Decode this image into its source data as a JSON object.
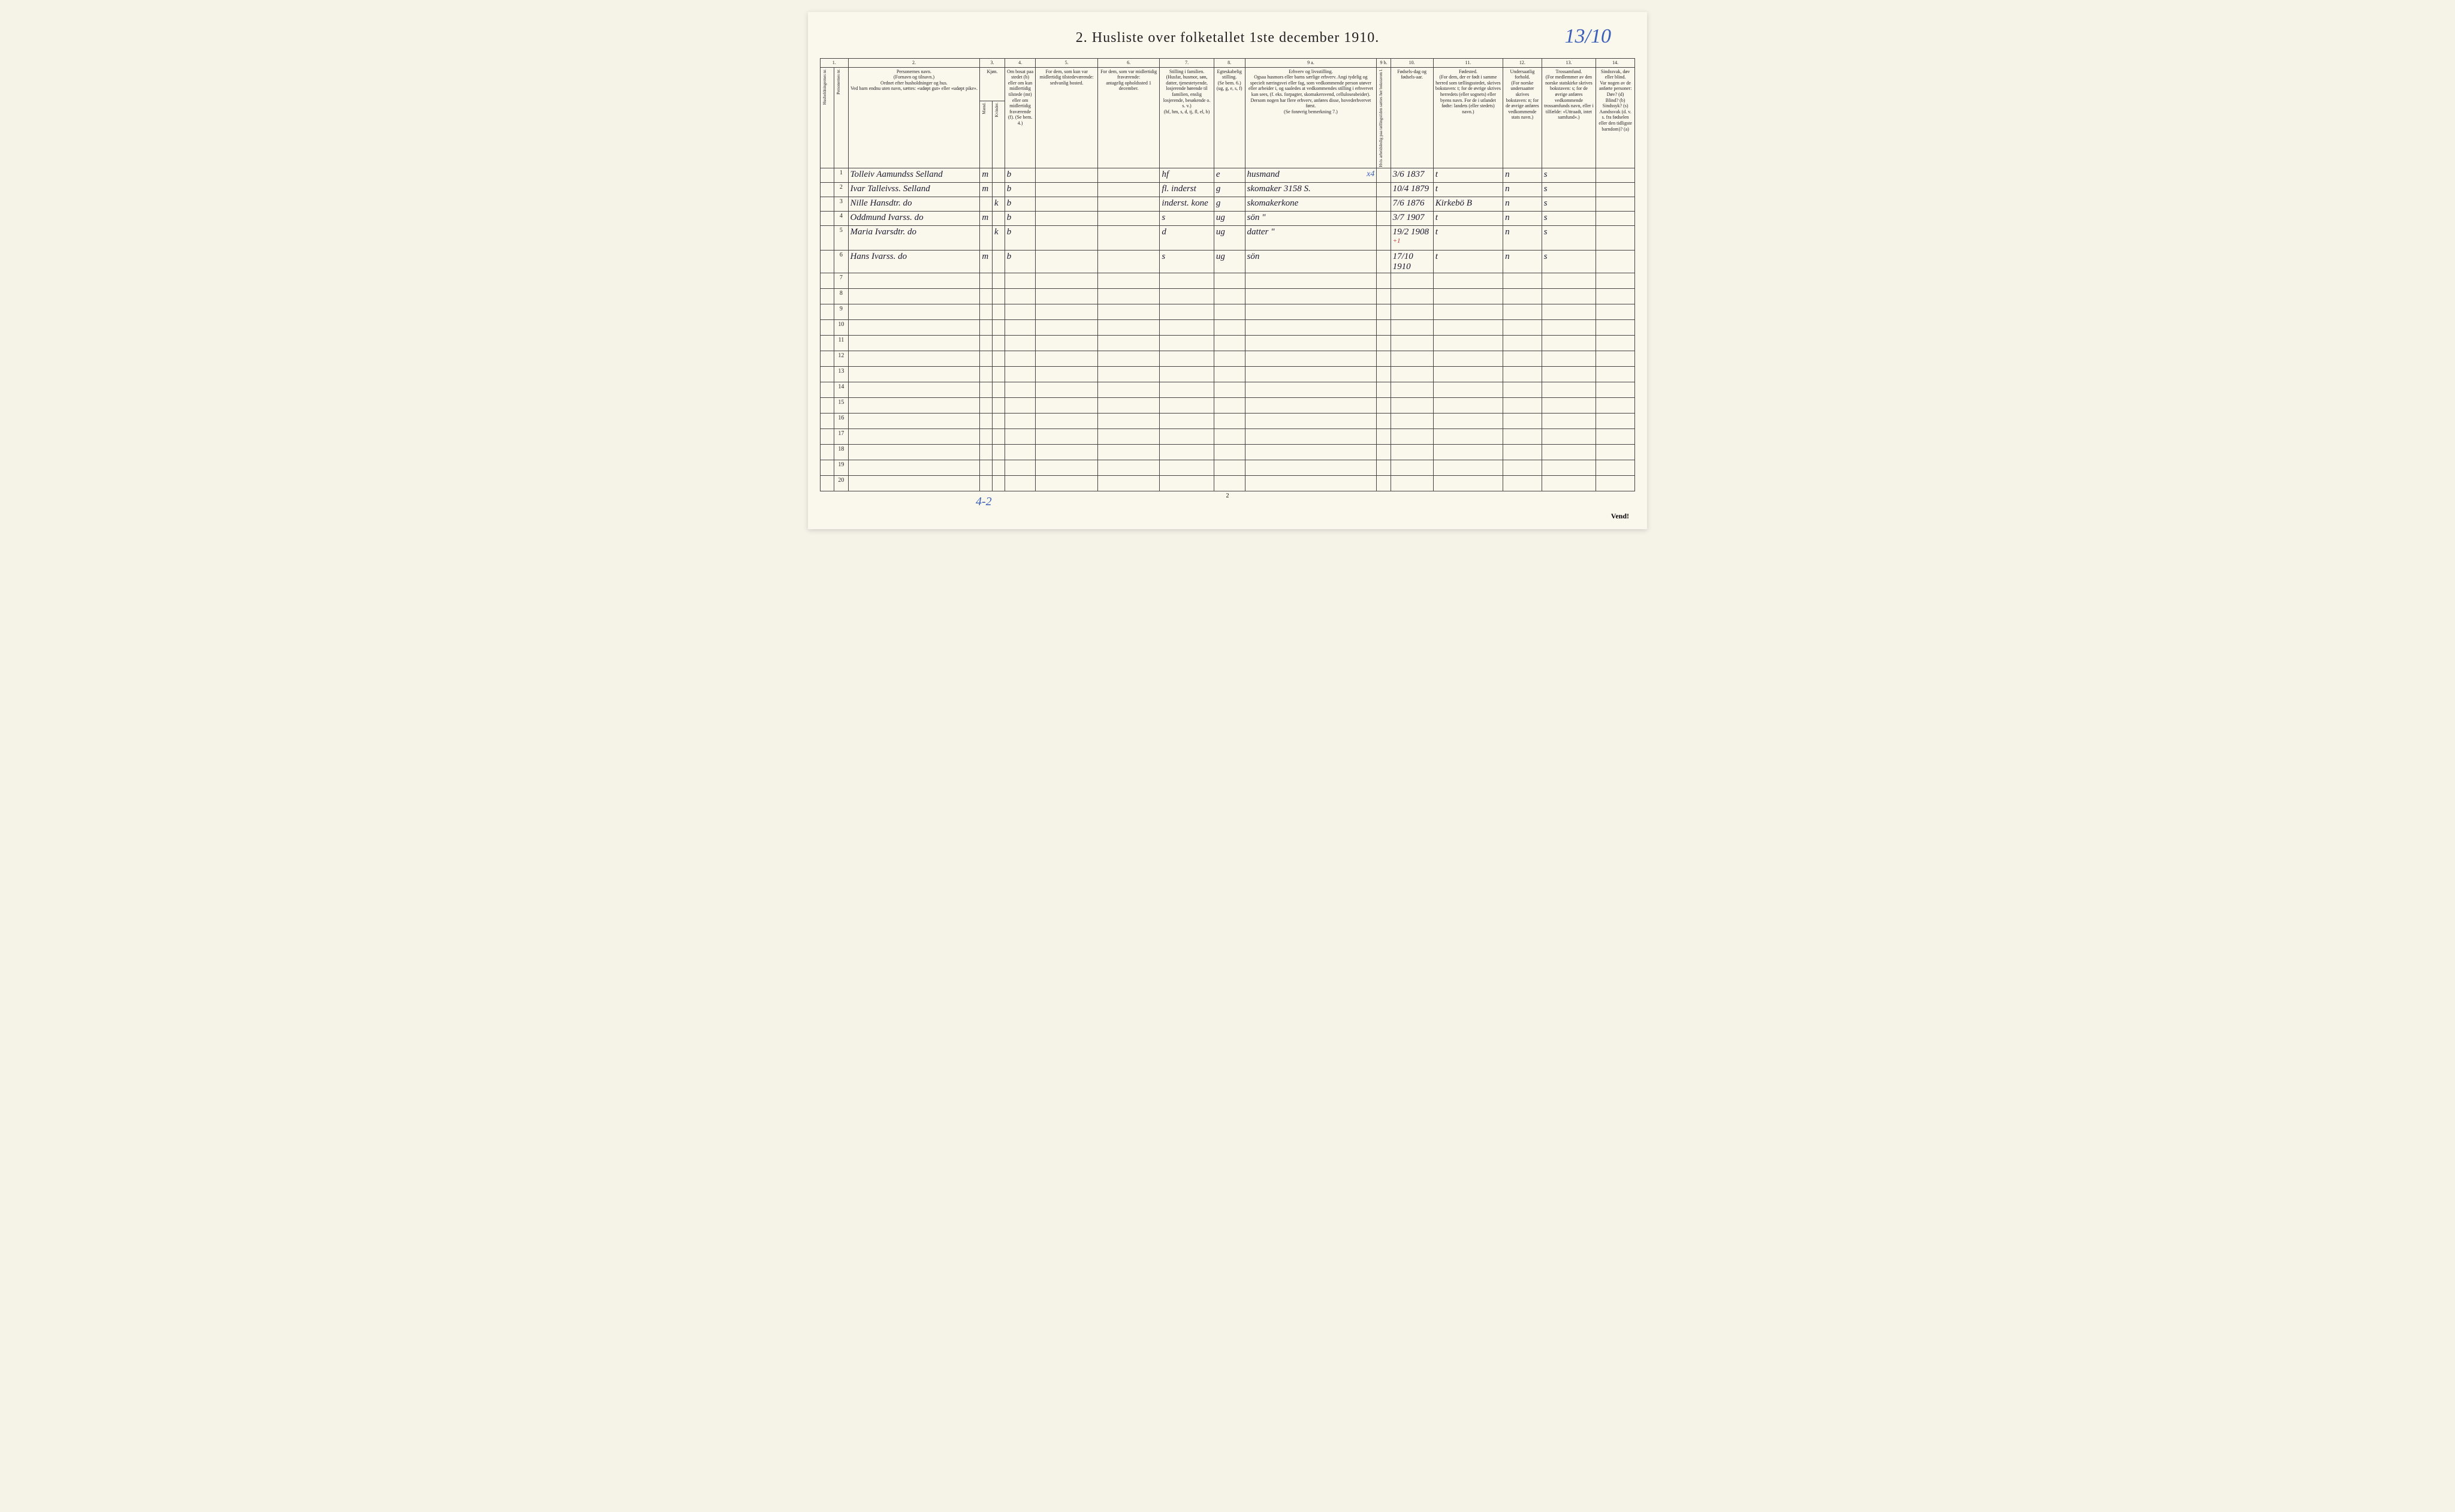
{
  "title": "2.  Husliste over folketallet 1ste december 1910.",
  "handwritten_top": "13/10",
  "columns": {
    "c1": "1.",
    "c1a": "Husholdningernes nr.",
    "c1b": "Personernes nr.",
    "c2": "2.",
    "c2_text": "Personernes navn.\n(Fornavn og tilnavn.)\nOrdnet efter husholdninger og hus.\nVed barn endnu uten navn, sættes: «udøpt gut» eller «udøpt pike».",
    "c3": "3.",
    "c3a": "Kjøn.",
    "c3b": "Mænd.",
    "c3c": "Kvinder.",
    "c4": "4.",
    "c4_text": "Om bosat paa stedet (b) eller om kun midlertidig tilstede (mt) eller om midlertidig fraværende (f). (Se bem. 4.)",
    "c5": "5.",
    "c5_text": "For dem, som kun var midlertidig tilstedeværende:\nsedvanlig bosted.",
    "c6": "6.",
    "c6_text": "For dem, som var midlertidig fraværende:\nantagelig opholdssted 1 december.",
    "c7": "7.",
    "c7_text": "Stilling i familien.\n(Husfar, husmor, søn, datter, tjenestetyende, losjerende hørende til familien, enslig losjerende, besøkende o. s. v.)\n(hf, hm, s, d, tj, fl, el, b)",
    "c8": "8.",
    "c8_text": "Egteskabelig stilling.\n(Se bem. 6.)\n(ug, g, e, s, f)",
    "c9a": "9 a.",
    "c9a_text": "Erhverv og livsstilling.\nOgsaa husmors eller barns særlige erhverv. Angi tydelig og specielt næringsvei eller fag, som vedkommende person utøver eller arbeider i, og saaledes at vedkommendes stilling i erhvervet kan sees, (f. eks. forpagter, skomakersvend, celluloseabeider). Dersom nogen har flere erhverv, anføres disse, hovederhvervet først.\n(Se forøvrig bemerkning 7.)",
    "c9b": "9 b.",
    "c9b_text": "Hvis arbeidsledig paa tællingstiden sættes her bokstaven l.",
    "c10": "10.",
    "c10_text": "Fødsels-dag og fødsels-aar.",
    "c11": "11.",
    "c11_text": "Fødested.\n(For dem, der er født i samme herred som tællingsstedet, skrives bokstaven: t; for de øvrige skrives herredets (eller sognets) eller byens navn. For de i utlandet fødte: landets (eller stedets) navn.)",
    "c12": "12.",
    "c12_text": "Undersaatlig forhold.\n(For norske undersaatter skrives bokstaven: n; for de øvrige anføres vedkommende stats navn.)",
    "c13": "13.",
    "c13_text": "Trossamfund.\n(For medlemmer av den norske statskirke skrives bokstaven: s; for de øvrige anføres vedkommende trossamfunds navn, eller i tilfælde: «Uttraadt, intet samfund».)",
    "c14": "14.",
    "c14_text": "Sindssvak, døv eller blind.\nVar nogen av de anførte personer:\nDøv? (d)\nBlind? (b)\nSindssyk? (s)\nAandssvak (d. v. s. fra fødselen eller den tidligste barndom)? (a)"
  },
  "rows": [
    {
      "n": "1",
      "name": "Tolleiv Aamundss Selland",
      "m": "m",
      "k": "",
      "b": "b",
      "c5": "",
      "c6": "",
      "c7": "hf",
      "c8": "e",
      "c9a": "husmand",
      "c9a_note": "x4",
      "c9b": "",
      "c10": "3/6 1837",
      "c11": "t",
      "c12": "n",
      "c13": "s",
      "c14": ""
    },
    {
      "n": "2",
      "name": "Ivar Talleivss. Selland",
      "m": "m",
      "k": "",
      "b": "b",
      "c5": "",
      "c6": "",
      "c7": "fl. inderst",
      "c8": "g",
      "c9a": "skomaker 3158 S.",
      "c9b": "",
      "c10": "10/4 1879",
      "c11": "t",
      "c12": "n",
      "c13": "s",
      "c14": ""
    },
    {
      "n": "3",
      "name": "Nille Hansdtr. do",
      "m": "",
      "k": "k",
      "b": "b",
      "c5": "",
      "c6": "",
      "c7": "inderst. kone",
      "c8": "g",
      "c9a": "skomakerkone",
      "c9b": "",
      "c10": "7/6 1876",
      "c11": "Kirkebö B",
      "c12": "n",
      "c13": "s",
      "c14": ""
    },
    {
      "n": "4",
      "name": "Oddmund Ivarss. do",
      "m": "m",
      "k": "",
      "b": "b",
      "c5": "",
      "c6": "",
      "c7": "s",
      "c8": "ug",
      "c9a": "sön \"",
      "c9b": "",
      "c10": "3/7 1907",
      "c11": "t",
      "c12": "n",
      "c13": "s",
      "c14": ""
    },
    {
      "n": "5",
      "name": "Maria Ivarsdtr. do",
      "m": "",
      "k": "k",
      "b": "b",
      "c5": "",
      "c6": "",
      "c7": "d",
      "c8": "ug",
      "c9a": "datter \"",
      "c9b": "",
      "c10": "19/2 1908",
      "c10_note": "+1",
      "c11": "t",
      "c12": "n",
      "c13": "s",
      "c14": ""
    },
    {
      "n": "6",
      "name": "Hans Ivarss. do",
      "m": "m",
      "k": "",
      "b": "b",
      "c5": "",
      "c6": "",
      "c7": "s",
      "c8": "ug",
      "c9a": "sön",
      "c9b": "",
      "c10": "17/10 1910",
      "c11": "t",
      "c12": "n",
      "c13": "s",
      "c14": ""
    }
  ],
  "empty_start": 7,
  "empty_end": 20,
  "bottom_note": "4-2",
  "bottom_page": "2",
  "vend": "Vend!",
  "colors": {
    "paper": "#faf7ed",
    "ink": "#222",
    "handwriting": "#1a1a2e",
    "blue_pencil": "#3a5fb8",
    "red": "#c03030",
    "border": "#444"
  },
  "col_widths": [
    "18",
    "18",
    "170",
    "16",
    "16",
    "40",
    "80",
    "80",
    "70",
    "40",
    "170",
    "18",
    "55",
    "90",
    "50",
    "70",
    "50"
  ]
}
